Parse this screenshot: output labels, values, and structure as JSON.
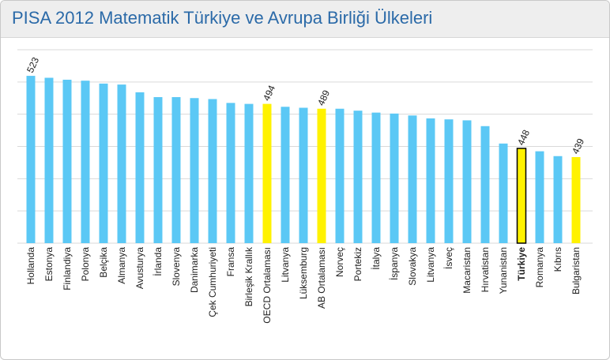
{
  "chart_data": {
    "type": "bar",
    "title": "PISA 2012 Matematik Türkiye ve Avrupa Birliği Ülkeleri",
    "categories": [
      "Hollanda",
      "Estonya",
      "Finlandiya",
      "Polonya",
      "Belçika",
      "Almanya",
      "Avusturya",
      "İrlanda",
      "Slovenya",
      "Danimarka",
      "Çek Cumhuriyeti",
      "Fransa",
      "Birleşik Krallık",
      "OECD Ortalaması",
      "Litvanya",
      "Lüksemburg",
      "AB Ortalaması",
      "Norveç",
      "Portekiz",
      "İtalya",
      "İspanya",
      "Slovakya",
      "Litvanya",
      "İsveç",
      "Macaristan",
      "Hırvatistan",
      "Yunanistan",
      "Türkiye",
      "Romanya",
      "Kıbrıs",
      "Bulgaristan"
    ],
    "values": [
      523,
      521,
      519,
      518,
      515,
      514,
      506,
      501,
      501,
      500,
      499,
      495,
      494,
      494,
      491,
      490,
      489,
      489,
      487,
      485,
      484,
      482,
      479,
      478,
      477,
      471,
      453,
      448,
      445,
      440,
      439
    ],
    "value_labels": [
      "523",
      null,
      null,
      null,
      null,
      null,
      null,
      null,
      null,
      null,
      null,
      null,
      null,
      "494",
      null,
      null,
      "489",
      null,
      null,
      null,
      null,
      null,
      null,
      null,
      null,
      null,
      null,
      "448",
      null,
      null,
      "439"
    ],
    "colors": [
      "#5bc8f5",
      "#5bc8f5",
      "#5bc8f5",
      "#5bc8f5",
      "#5bc8f5",
      "#5bc8f5",
      "#5bc8f5",
      "#5bc8f5",
      "#5bc8f5",
      "#5bc8f5",
      "#5bc8f5",
      "#5bc8f5",
      "#5bc8f5",
      "#fff200",
      "#5bc8f5",
      "#5bc8f5",
      "#fff200",
      "#5bc8f5",
      "#5bc8f5",
      "#5bc8f5",
      "#5bc8f5",
      "#5bc8f5",
      "#5bc8f5",
      "#5bc8f5",
      "#5bc8f5",
      "#5bc8f5",
      "#5bc8f5",
      "#fff200",
      "#5bc8f5",
      "#5bc8f5",
      "#fff200"
    ],
    "edgecolors": [
      null,
      null,
      null,
      null,
      null,
      null,
      null,
      null,
      null,
      null,
      null,
      null,
      null,
      null,
      null,
      null,
      null,
      null,
      null,
      null,
      null,
      null,
      null,
      null,
      null,
      null,
      null,
      "#000000",
      null,
      null,
      null
    ],
    "ylim": [
      350,
      550
    ],
    "grid": true
  }
}
